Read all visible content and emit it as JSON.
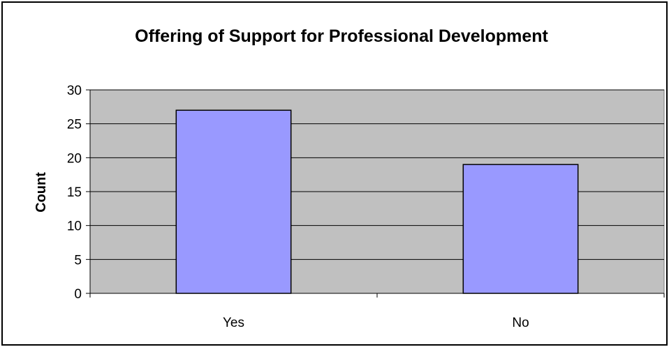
{
  "chart_data": {
    "type": "bar",
    "title": "Offering of Support for Professional Development",
    "xlabel": "",
    "ylabel": "Count",
    "categories": [
      "Yes",
      "No"
    ],
    "values": [
      27,
      19
    ],
    "ylim": [
      0,
      30
    ],
    "yticks": [
      0,
      5,
      10,
      15,
      20,
      25,
      30
    ],
    "grid": true,
    "legend": "none",
    "colors": {
      "bar_fill": "#9999ff",
      "plot_background": "#c0c0c0",
      "gridline": "#000000",
      "bar_stroke": "#000000"
    }
  }
}
